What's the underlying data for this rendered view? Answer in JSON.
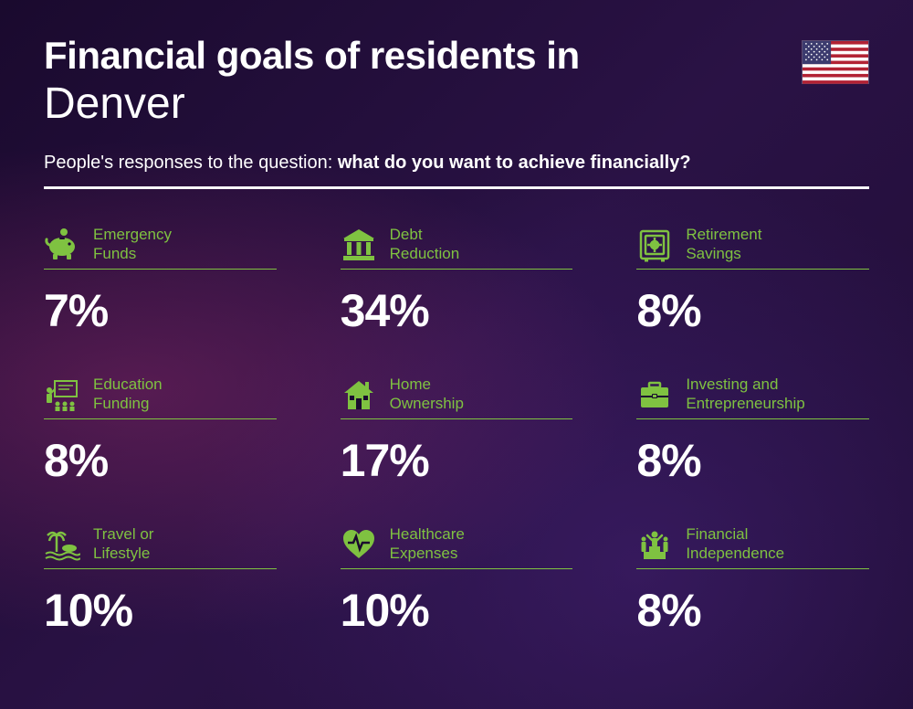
{
  "type": "infographic",
  "background_colors": [
    "#1a0a2e",
    "#2a1245",
    "#1f0d35"
  ],
  "accent_glow_colors": [
    "rgba(180,50,120,0.35)",
    "rgba(80,40,140,0.4)"
  ],
  "text_color": "#ffffff",
  "accent_color": "#7fc241",
  "divider_color": "#ffffff",
  "title_line1": "Financial goals of residents in",
  "title_line2": "Denver",
  "title_line1_fontsize": 42,
  "title_line1_fontweight": 800,
  "title_line2_fontsize": 48,
  "title_line2_fontweight": 300,
  "subtitle_prefix": "People's responses to the question: ",
  "subtitle_bold": "what do you want to achieve financially?",
  "subtitle_fontsize": 20,
  "flag": {
    "country": "United States",
    "colors": {
      "red": "#b22234",
      "white": "#ffffff",
      "blue": "#3c3b6e"
    }
  },
  "layout": {
    "columns": 3,
    "rows": 3,
    "column_gap": 70,
    "row_gap": 42
  },
  "label_fontsize": 17,
  "value_fontsize": 50,
  "value_fontweight": 800,
  "items": [
    {
      "icon": "piggy-bank-icon",
      "label": "Emergency\nFunds",
      "value": "7%"
    },
    {
      "icon": "bank-icon",
      "label": "Debt\nReduction",
      "value": "34%"
    },
    {
      "icon": "safe-icon",
      "label": "Retirement\nSavings",
      "value": "8%"
    },
    {
      "icon": "education-icon",
      "label": "Education\nFunding",
      "value": "8%"
    },
    {
      "icon": "house-icon",
      "label": "Home\nOwnership",
      "value": "17%"
    },
    {
      "icon": "briefcase-icon",
      "label": "Investing and\nEntrepreneurship",
      "value": "8%"
    },
    {
      "icon": "travel-icon",
      "label": "Travel or\nLifestyle",
      "value": "10%"
    },
    {
      "icon": "healthcare-icon",
      "label": "Healthcare\nExpenses",
      "value": "10%"
    },
    {
      "icon": "independence-icon",
      "label": "Financial\nIndependence",
      "value": "8%"
    }
  ]
}
